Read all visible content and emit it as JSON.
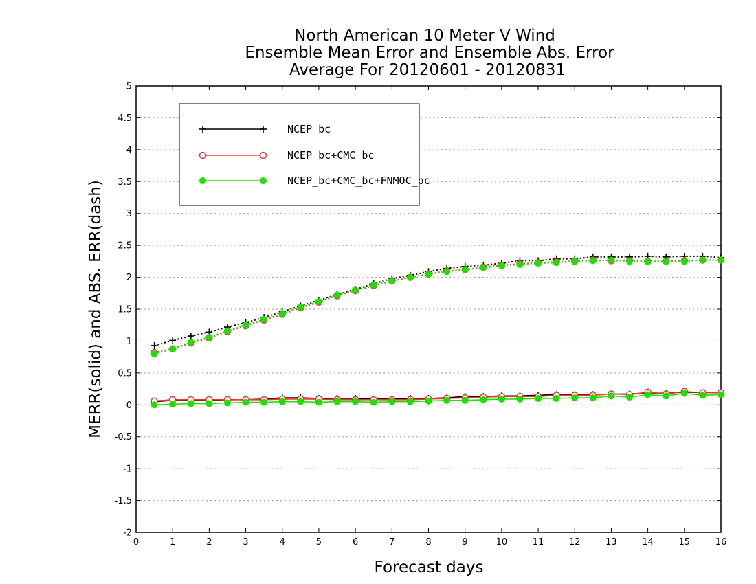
{
  "chart_data": {
    "type": "line",
    "title_lines": [
      "North American 10 Meter V Wind",
      "Ensemble Mean Error and Ensemble Abs. Error",
      "Average For 20120601 - 20120831"
    ],
    "xlabel": "Forecast days",
    "ylabel": "MERR(solid) and ABS. ERR(dash)",
    "xlim": [
      0,
      16
    ],
    "ylim": [
      -2,
      5
    ],
    "x_ticks": [
      "0",
      "1",
      "2",
      "3",
      "4",
      "5",
      "6",
      "7",
      "8",
      "9",
      "10",
      "11",
      "12",
      "13",
      "14",
      "15",
      "16"
    ],
    "y_ticks": [
      "-2",
      "-1.5",
      "-1",
      "-0.5",
      "0",
      "0.5",
      "1",
      "1.5",
      "2",
      "2.5",
      "3",
      "3.5",
      "4",
      "4.5",
      "5"
    ],
    "grid": "horizontal dotted",
    "legend_position": "top-left",
    "x": [
      0.5,
      1,
      1.5,
      2,
      2.5,
      3,
      3.5,
      4,
      4.5,
      5,
      5.5,
      6,
      6.5,
      7,
      7.5,
      8,
      8.5,
      9,
      9.5,
      10,
      10.5,
      11,
      11.5,
      12,
      12.5,
      13,
      13.5,
      14,
      14.5,
      15,
      15.5,
      16
    ],
    "series": [
      {
        "name": "NCEP_bc",
        "color": "#000000",
        "marker": "plus",
        "merr": [
          0.05,
          0.07,
          0.07,
          0.07,
          0.08,
          0.08,
          0.09,
          0.11,
          0.11,
          0.1,
          0.1,
          0.1,
          0.09,
          0.09,
          0.1,
          0.1,
          0.11,
          0.13,
          0.13,
          0.14,
          0.14,
          0.15,
          0.16,
          0.16,
          0.16,
          0.17,
          0.17,
          0.19,
          0.18,
          0.2,
          0.19,
          0.19
        ],
        "abs_err": [
          0.93,
          1.01,
          1.08,
          1.14,
          1.22,
          1.29,
          1.37,
          1.46,
          1.55,
          1.64,
          1.73,
          1.81,
          1.9,
          1.98,
          2.03,
          2.09,
          2.14,
          2.17,
          2.19,
          2.22,
          2.26,
          2.26,
          2.29,
          2.29,
          2.32,
          2.32,
          2.32,
          2.33,
          2.32,
          2.33,
          2.33,
          2.31
        ]
      },
      {
        "name": "NCEP_bc+CMC_bc",
        "color": "#ee3333",
        "marker": "open-circle",
        "merr": [
          0.06,
          0.08,
          0.08,
          0.08,
          0.08,
          0.08,
          0.08,
          0.09,
          0.09,
          0.09,
          0.08,
          0.08,
          0.08,
          0.08,
          0.08,
          0.09,
          0.1,
          0.11,
          0.12,
          0.13,
          0.13,
          0.13,
          0.15,
          0.15,
          0.15,
          0.17,
          0.16,
          0.2,
          0.17,
          0.21,
          0.19,
          0.19
        ],
        "abs_err": [
          0.82,
          0.88,
          0.97,
          1.05,
          1.15,
          1.24,
          1.33,
          1.42,
          1.52,
          1.61,
          1.71,
          1.79,
          1.87,
          1.94,
          2.0,
          2.05,
          2.1,
          2.12,
          2.16,
          2.19,
          2.21,
          2.23,
          2.24,
          2.25,
          2.27,
          2.26,
          2.26,
          2.25,
          2.25,
          2.26,
          2.27,
          2.27
        ]
      },
      {
        "name": "NCEP_bc+CMC_bc+FNMOC_bc",
        "color": "#22dd00",
        "marker": "filled-circle",
        "merr": [
          0.0,
          0.01,
          0.02,
          0.02,
          0.03,
          0.04,
          0.04,
          0.05,
          0.05,
          0.04,
          0.05,
          0.05,
          0.04,
          0.05,
          0.05,
          0.06,
          0.07,
          0.07,
          0.08,
          0.09,
          0.09,
          0.1,
          0.1,
          0.11,
          0.11,
          0.14,
          0.12,
          0.16,
          0.14,
          0.18,
          0.15,
          0.16
        ],
        "abs_err": [
          0.8,
          0.88,
          0.98,
          1.06,
          1.16,
          1.25,
          1.34,
          1.43,
          1.53,
          1.62,
          1.72,
          1.8,
          1.88,
          1.94,
          2.0,
          2.05,
          2.09,
          2.12,
          2.15,
          2.18,
          2.2,
          2.22,
          2.23,
          2.25,
          2.26,
          2.27,
          2.25,
          2.25,
          2.25,
          2.25,
          2.27,
          2.27
        ]
      }
    ]
  }
}
